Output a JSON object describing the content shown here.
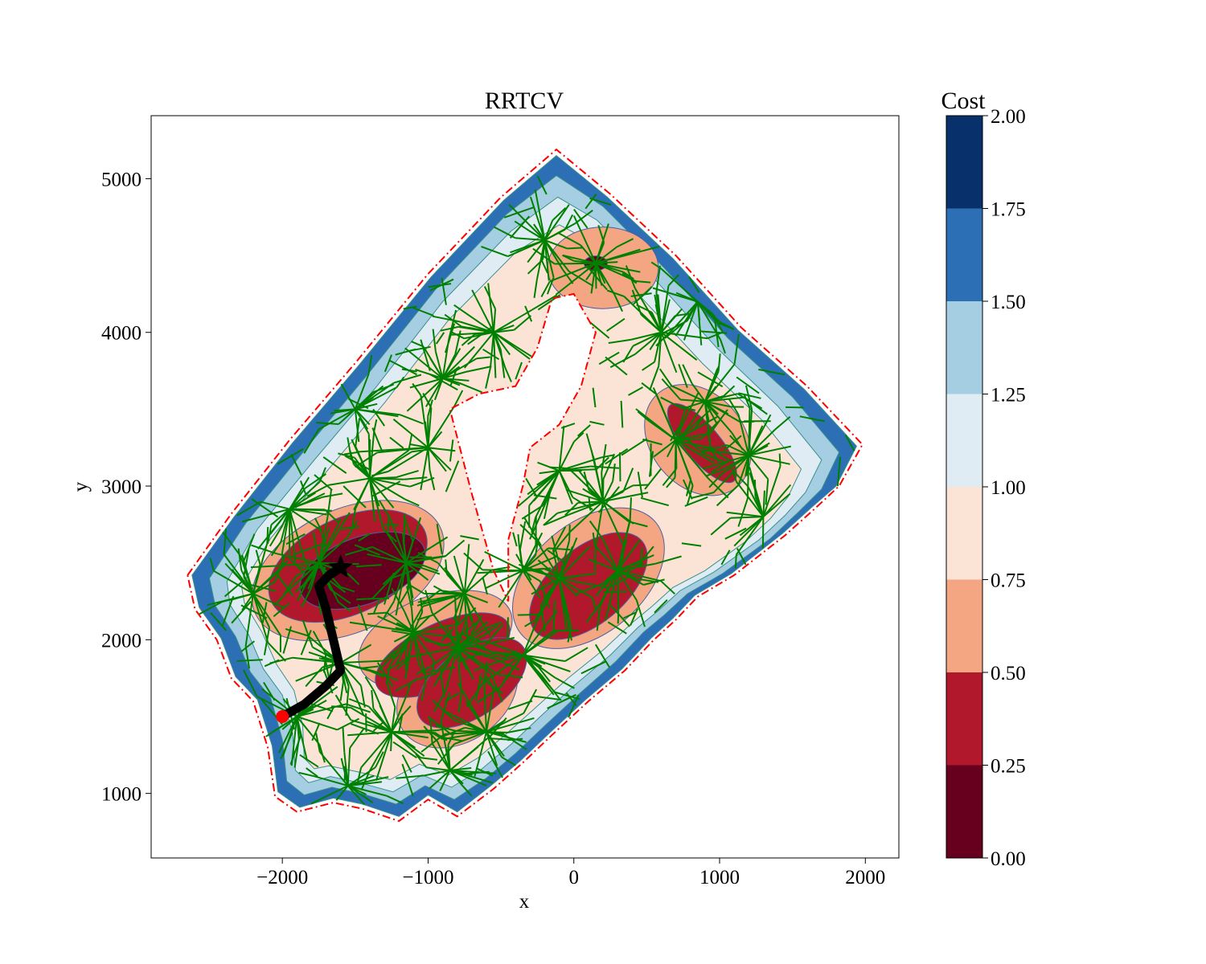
{
  "chart_data": {
    "type": "heatmap",
    "title": "RRTCV",
    "xlabel": "x",
    "ylabel": "y",
    "xlim": [
      -2900,
      2230
    ],
    "ylim": [
      580,
      5410
    ],
    "xticks": [
      -2000,
      -1000,
      0,
      1000,
      2000
    ],
    "xtick_labels": [
      "−2000",
      "−1000",
      "0",
      "1000",
      "2000"
    ],
    "yticks": [
      1000,
      2000,
      3000,
      4000,
      5000
    ],
    "ytick_labels": [
      "1000",
      "2000",
      "3000",
      "4000",
      "5000"
    ],
    "grid": false,
    "colorbar": {
      "label": "Cost",
      "range": [
        0,
        2
      ],
      "levels": [
        0.0,
        0.25,
        0.5,
        0.75,
        1.0,
        1.25,
        1.5,
        1.75,
        2.0
      ],
      "tick_labels": [
        "0.00",
        "0.25",
        "0.50",
        "0.75",
        "1.00",
        "1.25",
        "1.50",
        "1.75",
        "2.00"
      ],
      "colors": [
        "#67001f",
        "#b2182b",
        "#f4a582",
        "#fbe4d6",
        "#e0ecf4",
        "#a6cee3",
        "#2c6fb5",
        "#08306b"
      ]
    },
    "boundary": {
      "style": "dash-dot",
      "color": "#ff0000",
      "outer": [
        [
          -2650,
          2420
        ],
        [
          -2350,
          2820
        ],
        [
          -1950,
          3300
        ],
        [
          -1500,
          3800
        ],
        [
          -1000,
          4380
        ],
        [
          -500,
          4880
        ],
        [
          -120,
          5190
        ],
        [
          250,
          4900
        ],
        [
          700,
          4500
        ],
        [
          1150,
          4030
        ],
        [
          1600,
          3650
        ],
        [
          1980,
          3270
        ],
        [
          1820,
          3000
        ],
        [
          1650,
          2850
        ],
        [
          1450,
          2680
        ],
        [
          1100,
          2420
        ],
        [
          850,
          2280
        ],
        [
          700,
          2130
        ],
        [
          550,
          2000
        ],
        [
          350,
          1800
        ],
        [
          100,
          1600
        ],
        [
          -150,
          1380
        ],
        [
          -350,
          1200
        ],
        [
          -550,
          1030
        ],
        [
          -800,
          850
        ],
        [
          -1000,
          960
        ],
        [
          -1200,
          820
        ],
        [
          -1450,
          900
        ],
        [
          -1650,
          940
        ],
        [
          -1900,
          880
        ],
        [
          -2050,
          980
        ],
        [
          -2100,
          1300
        ],
        [
          -2200,
          1600
        ],
        [
          -2350,
          1750
        ],
        [
          -2450,
          2000
        ],
        [
          -2600,
          2200
        ]
      ],
      "hole": [
        [
          -400,
          3650
        ],
        [
          -250,
          3900
        ],
        [
          -150,
          4220
        ],
        [
          0,
          4250
        ],
        [
          150,
          4000
        ],
        [
          50,
          3650
        ],
        [
          -100,
          3400
        ],
        [
          -300,
          3250
        ],
        [
          -350,
          3000
        ],
        [
          -450,
          2650
        ],
        [
          -450,
          2250
        ],
        [
          -550,
          2450
        ],
        [
          -700,
          2950
        ],
        [
          -850,
          3500
        ],
        [
          -650,
          3600
        ]
      ]
    },
    "cost_regions": [
      {
        "level": 1.5,
        "points": [
          [
            -2620,
            2420
          ],
          [
            -2330,
            2800
          ],
          [
            -1930,
            3280
          ],
          [
            -1480,
            3780
          ],
          [
            -980,
            4360
          ],
          [
            -480,
            4860
          ],
          [
            -120,
            5150
          ],
          [
            230,
            4880
          ],
          [
            680,
            4480
          ],
          [
            1130,
            4010
          ],
          [
            1580,
            3630
          ],
          [
            1940,
            3260
          ],
          [
            1800,
            3000
          ],
          [
            1630,
            2860
          ],
          [
            1430,
            2690
          ],
          [
            1080,
            2430
          ],
          [
            830,
            2290
          ],
          [
            680,
            2140
          ],
          [
            530,
            2010
          ],
          [
            330,
            1810
          ],
          [
            80,
            1610
          ],
          [
            -170,
            1390
          ],
          [
            -370,
            1210
          ],
          [
            -570,
            1050
          ],
          [
            -800,
            880
          ],
          [
            -1000,
            990
          ],
          [
            -1200,
            850
          ],
          [
            -1450,
            930
          ],
          [
            -1650,
            970
          ],
          [
            -1880,
            910
          ],
          [
            -2030,
            1010
          ],
          [
            -2070,
            1310
          ],
          [
            -2170,
            1610
          ],
          [
            -2320,
            1760
          ],
          [
            -2420,
            2010
          ],
          [
            -2570,
            2210
          ]
        ]
      },
      {
        "level": 1.25,
        "points": [
          [
            -2500,
            2400
          ],
          [
            -2250,
            2760
          ],
          [
            -1850,
            3230
          ],
          [
            -1420,
            3720
          ],
          [
            -940,
            4290
          ],
          [
            -460,
            4770
          ],
          [
            -120,
            5020
          ],
          [
            200,
            4820
          ],
          [
            620,
            4420
          ],
          [
            1060,
            3960
          ],
          [
            1500,
            3580
          ],
          [
            1820,
            3220
          ],
          [
            1700,
            2980
          ],
          [
            1540,
            2830
          ],
          [
            1350,
            2660
          ],
          [
            1020,
            2430
          ],
          [
            780,
            2300
          ],
          [
            620,
            2160
          ],
          [
            480,
            2050
          ],
          [
            290,
            1860
          ],
          [
            40,
            1650
          ],
          [
            -200,
            1440
          ],
          [
            -400,
            1260
          ],
          [
            -600,
            1100
          ],
          [
            -820,
            960
          ],
          [
            -1020,
            1050
          ],
          [
            -1220,
            930
          ],
          [
            -1460,
            1000
          ],
          [
            -1660,
            1040
          ],
          [
            -1850,
            990
          ],
          [
            -1970,
            1080
          ],
          [
            -2000,
            1350
          ],
          [
            -2080,
            1620
          ],
          [
            -2220,
            1790
          ],
          [
            -2320,
            2020
          ],
          [
            -2460,
            2220
          ]
        ]
      },
      {
        "level": 1.0,
        "points": [
          [
            -2380,
            2380
          ],
          [
            -2170,
            2720
          ],
          [
            -1780,
            3170
          ],
          [
            -1360,
            3640
          ],
          [
            -900,
            4200
          ],
          [
            -430,
            4660
          ],
          [
            -110,
            4880
          ],
          [
            160,
            4730
          ],
          [
            560,
            4340
          ],
          [
            980,
            3900
          ],
          [
            1400,
            3520
          ],
          [
            1700,
            3170
          ],
          [
            1590,
            2960
          ],
          [
            1450,
            2810
          ],
          [
            1270,
            2650
          ],
          [
            960,
            2440
          ],
          [
            730,
            2320
          ],
          [
            580,
            2190
          ],
          [
            440,
            2080
          ],
          [
            250,
            1900
          ],
          [
            0,
            1700
          ],
          [
            -230,
            1500
          ],
          [
            -430,
            1320
          ],
          [
            -630,
            1160
          ],
          [
            -840,
            1040
          ],
          [
            -1040,
            1120
          ],
          [
            -1240,
            1010
          ],
          [
            -1470,
            1070
          ],
          [
            -1670,
            1110
          ],
          [
            -1820,
            1070
          ],
          [
            -1910,
            1150
          ],
          [
            -1930,
            1390
          ],
          [
            -2000,
            1640
          ],
          [
            -2130,
            1810
          ],
          [
            -2230,
            2030
          ],
          [
            -2360,
            2230
          ]
        ]
      },
      {
        "level": 0.75,
        "points": [
          [
            -2280,
            2350
          ],
          [
            -2080,
            2660
          ],
          [
            -1700,
            3090
          ],
          [
            -1300,
            3540
          ],
          [
            -860,
            4080
          ],
          [
            -400,
            4520
          ],
          [
            -100,
            4700
          ],
          [
            100,
            4600
          ],
          [
            470,
            4220
          ],
          [
            880,
            3800
          ],
          [
            1290,
            3430
          ],
          [
            1560,
            3110
          ],
          [
            1470,
            2930
          ],
          [
            1350,
            2790
          ],
          [
            1180,
            2640
          ],
          [
            900,
            2450
          ],
          [
            680,
            2340
          ],
          [
            540,
            2220
          ],
          [
            400,
            2110
          ],
          [
            210,
            1940
          ],
          [
            -40,
            1750
          ],
          [
            -260,
            1560
          ],
          [
            -460,
            1390
          ],
          [
            -660,
            1230
          ],
          [
            -860,
            1120
          ],
          [
            -1060,
            1190
          ],
          [
            -1260,
            1090
          ],
          [
            -1480,
            1140
          ],
          [
            -1680,
            1180
          ],
          [
            -1780,
            1160
          ],
          [
            -1850,
            1230
          ],
          [
            -1860,
            1440
          ],
          [
            -1920,
            1670
          ],
          [
            -2040,
            1840
          ],
          [
            -2140,
            2050
          ],
          [
            -2260,
            2240
          ]
        ]
      }
    ],
    "low_cost_blobs": [
      {
        "level": 0.5,
        "cx": -1550,
        "cy": 2450,
        "rx": 700,
        "ry": 420,
        "angle": 25
      },
      {
        "level": 0.5,
        "cx": -950,
        "cy": 2000,
        "rx": 550,
        "ry": 300,
        "angle": 20
      },
      {
        "level": 0.5,
        "cx": -800,
        "cy": 1650,
        "rx": 450,
        "ry": 330,
        "angle": 35
      },
      {
        "level": 0.5,
        "cx": 100,
        "cy": 2400,
        "rx": 600,
        "ry": 380,
        "angle": 40
      },
      {
        "level": 0.5,
        "cx": 850,
        "cy": 3300,
        "rx": 320,
        "ry": 420,
        "angle": 40
      },
      {
        "level": 0.5,
        "cx": 200,
        "cy": 4420,
        "rx": 380,
        "ry": 280,
        "angle": 0
      },
      {
        "level": 0.25,
        "cx": -1550,
        "cy": 2480,
        "rx": 580,
        "ry": 330,
        "angle": 25
      },
      {
        "level": 0.25,
        "cx": -900,
        "cy": 1900,
        "rx": 500,
        "ry": 220,
        "angle": 25
      },
      {
        "level": 0.25,
        "cx": -700,
        "cy": 1720,
        "rx": 430,
        "ry": 230,
        "angle": 35
      },
      {
        "level": 0.25,
        "cx": 100,
        "cy": 2350,
        "rx": 480,
        "ry": 260,
        "angle": 40
      },
      {
        "level": 0.25,
        "cx": 880,
        "cy": 3280,
        "rx": 120,
        "ry": 340,
        "angle": 40
      },
      {
        "level": 0.0,
        "cx": -1450,
        "cy": 2450,
        "rx": 450,
        "ry": 230,
        "angle": 20
      },
      {
        "level": 0.0,
        "cx": 150,
        "cy": 4450,
        "rx": 80,
        "ry": 50,
        "angle": 0
      }
    ],
    "tree": {
      "color": "#008000",
      "hubs": [
        [
          -1750,
          2500
        ],
        [
          -1400,
          3050
        ],
        [
          -1150,
          2500
        ],
        [
          -1100,
          2050
        ],
        [
          -1600,
          1850
        ],
        [
          -1250,
          1400
        ],
        [
          -800,
          1950
        ],
        [
          -750,
          2300
        ],
        [
          -350,
          2450
        ],
        [
          -100,
          2400
        ],
        [
          300,
          2450
        ],
        [
          200,
          2900
        ],
        [
          700,
          3300
        ],
        [
          900,
          3550
        ],
        [
          1200,
          3200
        ],
        [
          1300,
          2800
        ],
        [
          600,
          4000
        ],
        [
          850,
          4200
        ],
        [
          150,
          4450
        ],
        [
          -200,
          4600
        ],
        [
          -550,
          4000
        ],
        [
          -900,
          3700
        ],
        [
          -1500,
          3500
        ],
        [
          -1950,
          2850
        ],
        [
          -2200,
          2300
        ],
        [
          -1900,
          1500
        ],
        [
          -600,
          1400
        ],
        [
          -1000,
          3250
        ],
        [
          -350,
          1900
        ],
        [
          -1550,
          1050
        ],
        [
          -850,
          1150
        ],
        [
          -100,
          3100
        ]
      ]
    },
    "path": {
      "color": "#000000",
      "points": [
        [
          -2000,
          1500
        ],
        [
          -1850,
          1580
        ],
        [
          -1700,
          1700
        ],
        [
          -1600,
          1800
        ],
        [
          -1650,
          2000
        ],
        [
          -1700,
          2200
        ],
        [
          -1750,
          2350
        ],
        [
          -1680,
          2420
        ],
        [
          -1600,
          2470
        ]
      ],
      "start": [
        -2000,
        1500
      ],
      "goal": [
        -1600,
        2470
      ],
      "start_color": "#ff0000"
    }
  }
}
